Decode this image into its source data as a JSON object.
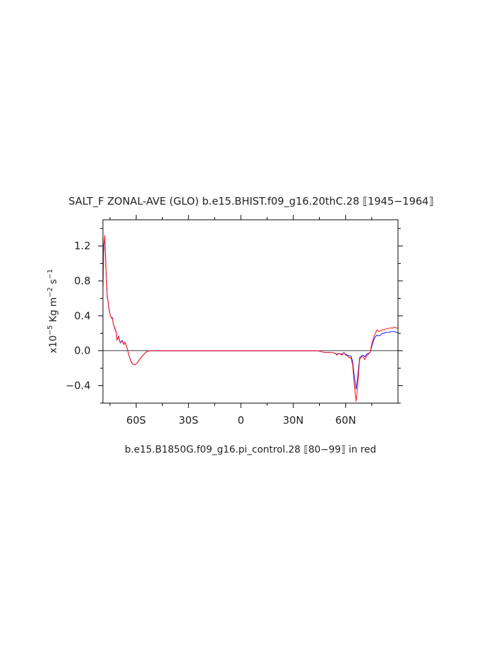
{
  "chart_data": {
    "type": "line",
    "title": "SALT_F ZONAL-AVE (GLO) b.e15.BHIST.f09_g16.20thC.28 ⟦1945−1964⟧",
    "subtitle": "b.e15.B1850G.f09_g16.pi_control.28 ⟦80−99⟧ in red",
    "ylabel": {
      "prefix": "x10",
      "exp1": "−5",
      "mid1": " Kg m",
      "exp2": "−2",
      "mid2": " s",
      "exp3": "−1"
    },
    "xlim": [
      -79,
      90
    ],
    "ylim": [
      -0.6,
      1.5
    ],
    "x_ticks": [
      {
        "value": -60,
        "label": "60S"
      },
      {
        "value": -30,
        "label": "30S"
      },
      {
        "value": 0,
        "label": "0"
      },
      {
        "value": 30,
        "label": "30N"
      },
      {
        "value": 60,
        "label": "60N"
      }
    ],
    "y_ticks": [
      {
        "value": 1.2,
        "label": "1.2"
      },
      {
        "value": 0.8,
        "label": "0.8"
      },
      {
        "value": 0.4,
        "label": "0.4"
      },
      {
        "value": 0.0,
        "label": "0.0"
      },
      {
        "value": -0.4,
        "label": "−0.4"
      }
    ],
    "zero_line": true,
    "series": [
      {
        "color": "#2020ff",
        "x": [
          -79,
          -78.5,
          -78,
          -77.5,
          -77,
          -76.5,
          -76,
          -75.5,
          -75,
          -74,
          -73.5,
          -73,
          -72,
          -71.5,
          -71,
          -70,
          -69.5,
          -69,
          -68,
          -67,
          -66.5,
          -66,
          -65,
          -64,
          -63,
          -62,
          -61,
          -60,
          -59,
          -58,
          -56,
          -54,
          -52,
          -50,
          -45,
          -30,
          0,
          30,
          44,
          46,
          48,
          50,
          52,
          54,
          55,
          56,
          58,
          59,
          60,
          61,
          62,
          63,
          64,
          65,
          66,
          67,
          68,
          69,
          70,
          71,
          72,
          73,
          74,
          75,
          76,
          77,
          78,
          79,
          80,
          81,
          82,
          83,
          84,
          85,
          86,
          87,
          88,
          89,
          90
        ],
        "y": [
          0.75,
          1.2,
          1.3,
          1.05,
          0.8,
          0.62,
          0.55,
          0.48,
          0.42,
          0.37,
          0.38,
          0.3,
          0.25,
          0.22,
          0.12,
          0.17,
          0.12,
          0.09,
          0.12,
          0.07,
          0.1,
          0.08,
          0.02,
          -0.06,
          -0.12,
          -0.15,
          -0.16,
          -0.15,
          -0.13,
          -0.1,
          -0.05,
          -0.01,
          0.0,
          0.0,
          0.0,
          0.0,
          0.0,
          0.0,
          0.0,
          -0.01,
          -0.02,
          -0.02,
          -0.02,
          -0.03,
          -0.04,
          -0.03,
          -0.04,
          -0.02,
          -0.04,
          -0.05,
          -0.06,
          -0.06,
          -0.12,
          -0.3,
          -0.44,
          -0.28,
          -0.08,
          -0.06,
          -0.05,
          -0.07,
          -0.04,
          -0.03,
          -0.02,
          0.05,
          0.12,
          0.16,
          0.18,
          0.17,
          0.18,
          0.2,
          0.2,
          0.21,
          0.21,
          0.21,
          0.22,
          0.22,
          0.22,
          0.21,
          0.21
        ]
      },
      {
        "color": "#ff2020",
        "x": [
          -79,
          -78.5,
          -78,
          -77.5,
          -77,
          -76.5,
          -76,
          -75.5,
          -75,
          -74,
          -73.5,
          -73,
          -72,
          -71.5,
          -71,
          -70,
          -69.5,
          -69,
          -68,
          -67,
          -66.5,
          -66,
          -65,
          -64,
          -63,
          -62,
          -61,
          -60,
          -59,
          -58,
          -56,
          -54,
          -52,
          -50,
          -45,
          -30,
          0,
          30,
          44,
          46,
          48,
          50,
          52,
          54,
          55,
          56,
          58,
          59,
          60,
          61,
          62,
          63,
          64,
          65,
          66,
          67,
          68,
          69,
          70,
          71,
          72,
          73,
          74,
          75,
          76,
          77,
          78,
          79,
          80,
          81,
          82,
          83,
          84,
          85,
          86,
          87,
          88,
          89,
          90
        ],
        "y": [
          0.72,
          1.22,
          1.32,
          1.08,
          0.82,
          0.6,
          0.56,
          0.47,
          0.42,
          0.37,
          0.37,
          0.3,
          0.24,
          0.23,
          0.12,
          0.16,
          0.11,
          0.1,
          0.11,
          0.07,
          0.1,
          0.08,
          0.02,
          -0.06,
          -0.12,
          -0.15,
          -0.16,
          -0.15,
          -0.13,
          -0.1,
          -0.05,
          -0.01,
          0.0,
          0.0,
          0.0,
          0.0,
          0.0,
          0.0,
          0.0,
          -0.01,
          -0.02,
          -0.02,
          -0.02,
          -0.03,
          -0.05,
          -0.03,
          -0.05,
          -0.02,
          -0.05,
          -0.06,
          -0.08,
          -0.08,
          -0.16,
          -0.4,
          -0.58,
          -0.38,
          -0.1,
          -0.07,
          -0.07,
          -0.1,
          -0.06,
          -0.04,
          -0.02,
          0.08,
          0.15,
          0.2,
          0.24,
          0.22,
          0.23,
          0.24,
          0.24,
          0.25,
          0.25,
          0.26,
          0.26,
          0.26,
          0.27,
          0.26,
          0.26
        ]
      }
    ]
  }
}
